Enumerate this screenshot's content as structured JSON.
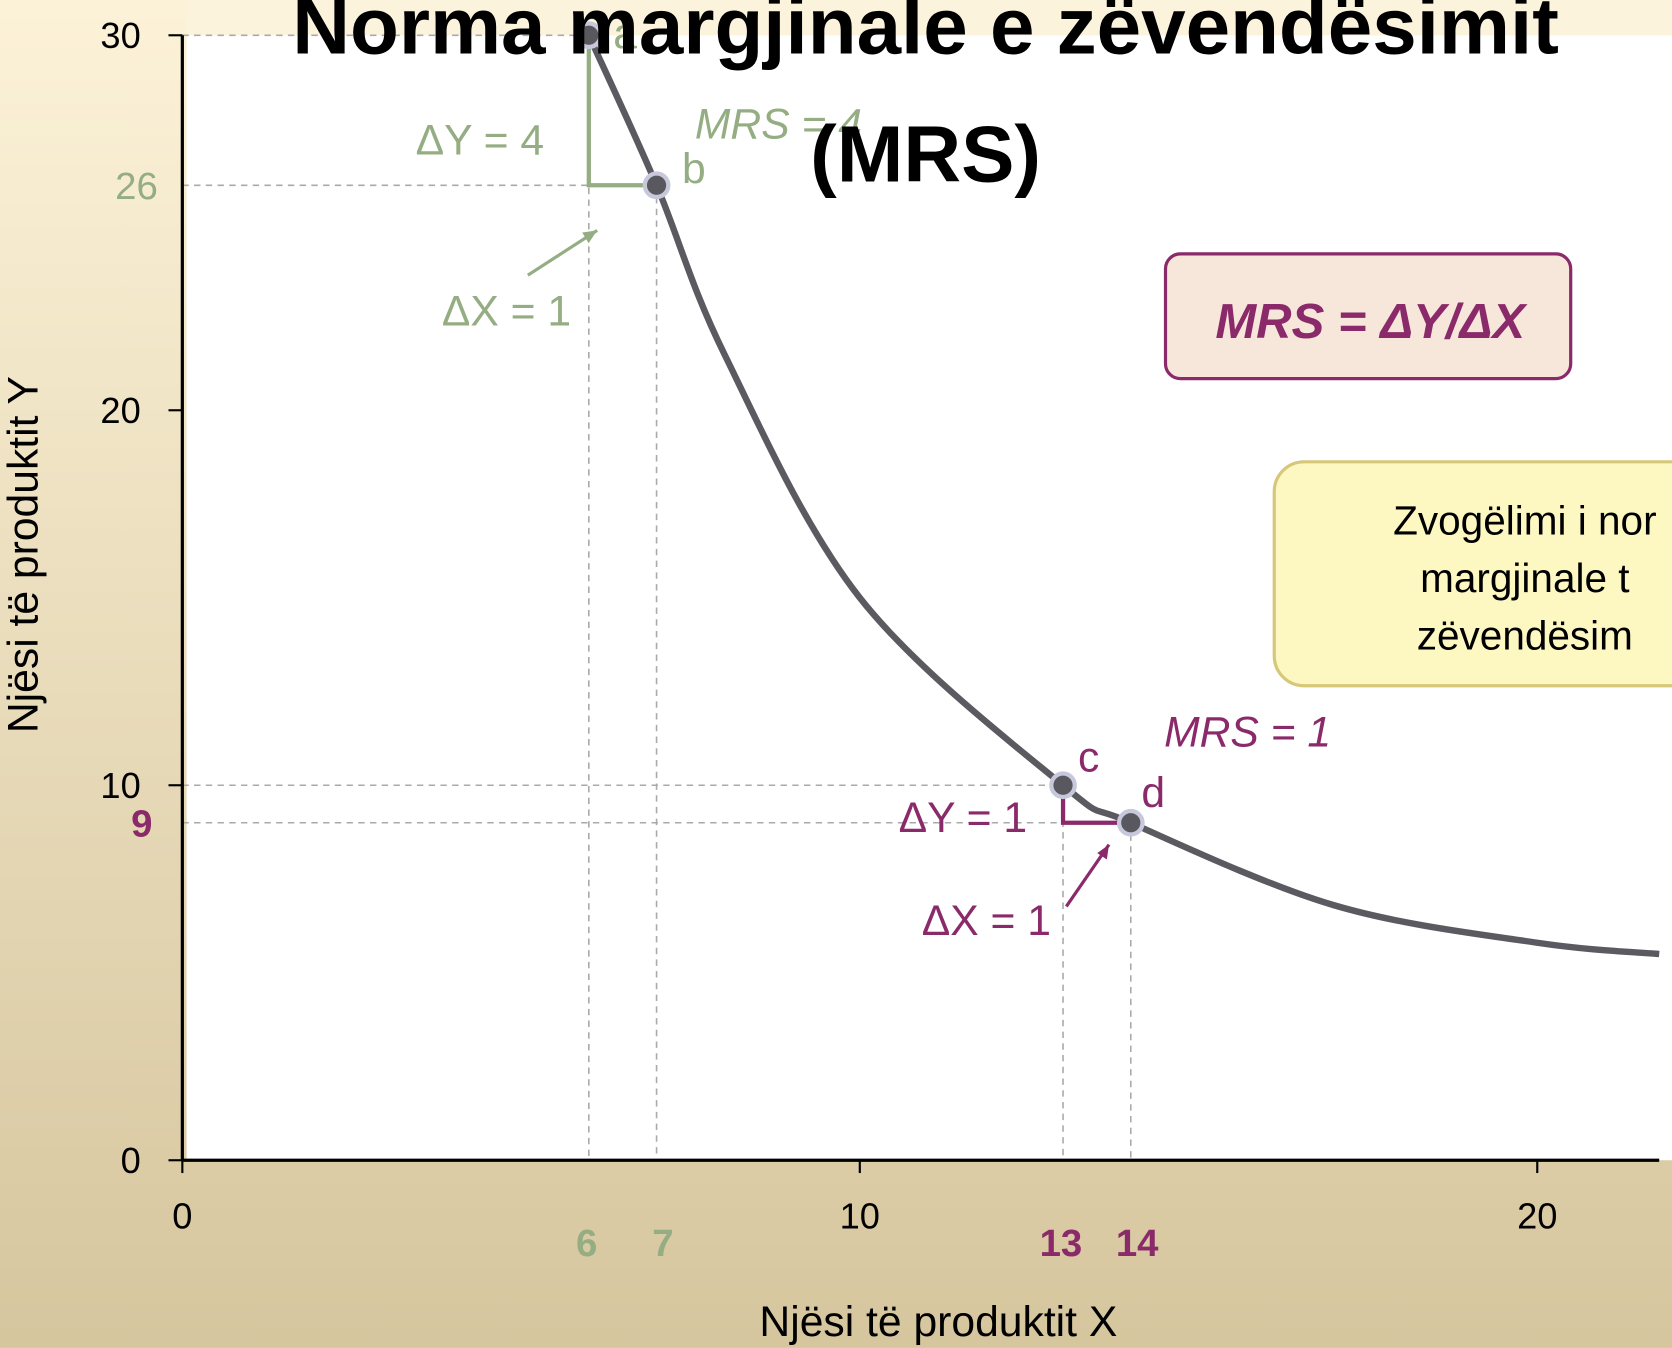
{
  "chart_data": {
    "type": "line",
    "title": [
      "Norma margjinale e zëvendësimit",
      "(MRS)"
    ],
    "x_label": "Njësi të produktit X",
    "y_label": "Njësi të produktit Y",
    "xlim": [
      0,
      21.8
    ],
    "ylim": [
      0,
      30
    ],
    "xticks": [
      0,
      10,
      20
    ],
    "yticks": [
      0,
      10,
      20,
      30
    ],
    "marked_xticks": [
      {
        "value": 6,
        "color": "#94ad82"
      },
      {
        "value": 7,
        "color": "#94ad82"
      },
      {
        "value": 13,
        "color": "#8b2a6a"
      },
      {
        "value": 14,
        "color": "#8b2a6a"
      }
    ],
    "marked_yticks": [
      {
        "value": 26,
        "color": "#94ad82"
      },
      {
        "value": 9,
        "color": "#8b2a6a"
      }
    ],
    "series": [
      {
        "name": "curve",
        "color": "#5a5a60",
        "x": [
          6,
          7,
          8,
          10,
          13,
          14,
          17,
          20,
          21.8
        ],
        "values": [
          30,
          26,
          21.5,
          15,
          10,
          9,
          6.8,
          5.8,
          5.5
        ]
      }
    ],
    "points": [
      {
        "label": "a",
        "x": 6,
        "y": 30
      },
      {
        "label": "b",
        "x": 7,
        "y": 26
      },
      {
        "label": "c",
        "x": 13,
        "y": 10
      },
      {
        "label": "d",
        "x": 14,
        "y": 9
      }
    ],
    "annotations": [
      {
        "text": "ΔY = 4",
        "color": "#94ad82"
      },
      {
        "text": "MRS = 4",
        "color": "#94ad82"
      },
      {
        "text": "ΔX = 1",
        "color": "#94ad82"
      },
      {
        "text": "ΔY = 1",
        "color": "#8b2a6a"
      },
      {
        "text": "ΔX = 1",
        "color": "#8b2a6a"
      },
      {
        "text": "MRS = 1",
        "color": "#8b2a6a"
      }
    ],
    "formula": "MRS = ΔY/ΔX",
    "callout": [
      "Zvogëlimi i nor",
      "margjinale t",
      "zëvendësim"
    ]
  }
}
